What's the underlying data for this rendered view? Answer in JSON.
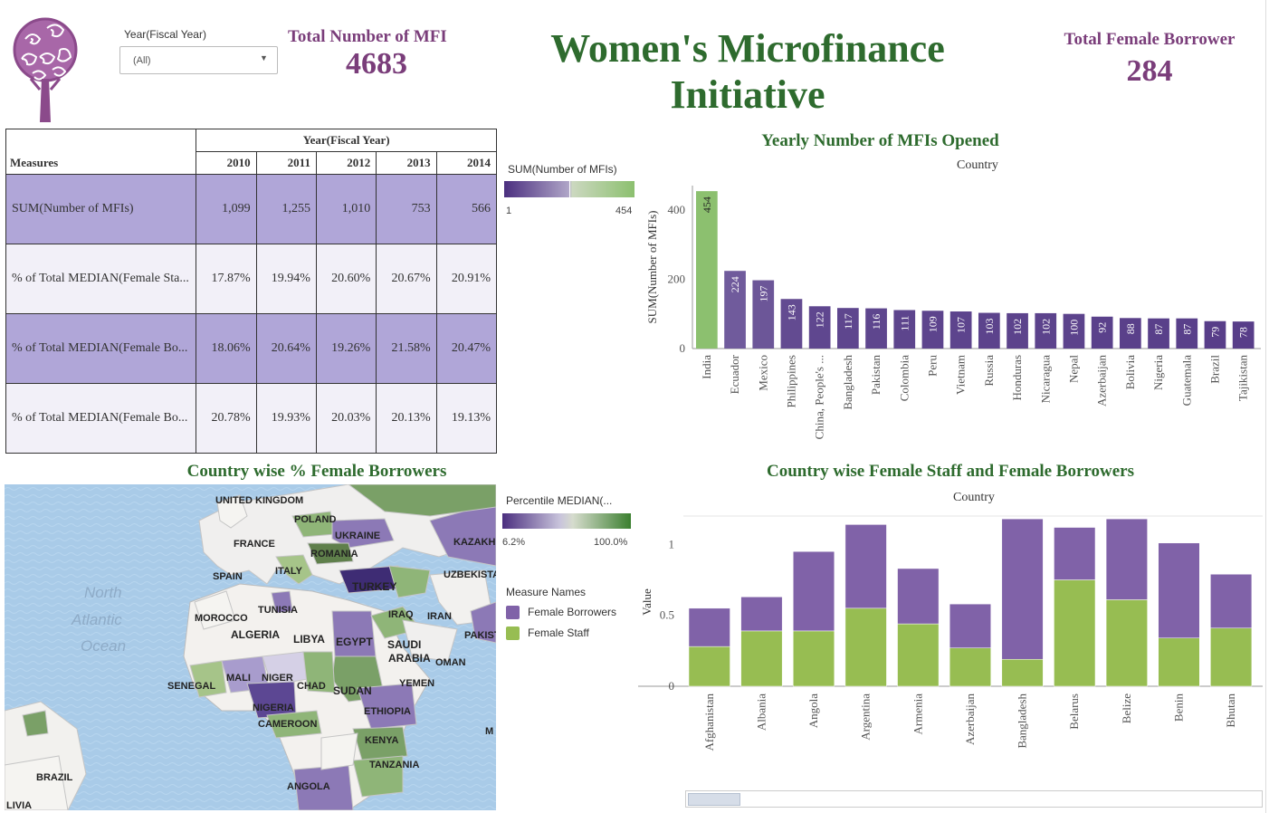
{
  "header": {
    "title": "Women's Microfinance Initiative",
    "filter_label": "Year(Fiscal Year)",
    "filter_value": "(All)",
    "kpi_mfi_label": "Total Number of MFI",
    "kpi_mfi_value": "4683",
    "kpi_fb_label": "Total Female Borrower",
    "kpi_fb_value": "284"
  },
  "crosstab": {
    "column_group": "Year(Fiscal Year)",
    "row_header": "Measures",
    "years": [
      "2010",
      "2011",
      "2012",
      "2013",
      "2014"
    ],
    "rows": [
      {
        "label": "SUM(Number of MFIs)",
        "values": [
          "1,099",
          "1,255",
          "1,010",
          "753",
          "566"
        ]
      },
      {
        "label": "% of Total MEDIAN(Female Sta...",
        "values": [
          "17.87%",
          "19.94%",
          "20.60%",
          "20.67%",
          "20.91%"
        ]
      },
      {
        "label": "% of Total MEDIAN(Female Bo...",
        "values": [
          "18.06%",
          "20.64%",
          "19.26%",
          "21.58%",
          "20.47%"
        ]
      },
      {
        "label": "% of Total MEDIAN(Female Bo...",
        "values": [
          "20.78%",
          "19.93%",
          "20.03%",
          "20.13%",
          "19.13%"
        ]
      }
    ]
  },
  "legend_mfi": {
    "title": "SUM(Number of MFIs)",
    "min": "1",
    "max": "454",
    "color_low": "#4b2f7f",
    "color_high": "#8cc06f"
  },
  "legend_map": {
    "title": "Percentile MEDIAN(...",
    "min": "6.2%",
    "max": "100.0%",
    "color_low": "#4b2f7f",
    "color_high": "#3b7f2f"
  },
  "legend_measures": {
    "title": "Measure Names",
    "items": [
      {
        "label": "Female Borrowers",
        "color": "#8062a8"
      },
      {
        "label": "Female Staff",
        "color": "#97bd52"
      }
    ]
  },
  "map": {
    "title": "Country wise % Female Borrowers",
    "ocean_label_1": "North",
    "ocean_label_2": "Atlantic",
    "ocean_label_3": "Ocean",
    "countries": [
      "UNITED KINGDOM",
      "POLAND",
      "UKRAINE",
      "KAZAKH",
      "FRANCE",
      "ROMANIA",
      "SPAIN",
      "ITALY",
      "UZBEKISTA",
      "TURKEY",
      "TUNISIA",
      "MOROCCO",
      "ALGERIA",
      "LIBYA",
      "EGYPT",
      "IRAQ",
      "IRAN",
      "SAUDI",
      "ARABIA",
      "OMAN",
      "PAKIST",
      "SENEGAL",
      "MALI",
      "NIGER",
      "CHAD",
      "SUDAN",
      "YEMEN",
      "NIGERIA",
      "ETHIOPIA",
      "CAMEROON",
      "KENYA",
      "TANZANIA",
      "BRAZIL",
      "ANGOLA",
      "LIVIA",
      "M"
    ]
  },
  "chart_data": [
    {
      "type": "bar",
      "title": "Yearly Number of MFIs Opened",
      "xlabel": "Country",
      "ylabel": "SUM(Number of MFIs)",
      "ylim": [
        0,
        470
      ],
      "yticks": [
        0,
        200,
        400
      ],
      "categories": [
        "India",
        "Ecuador",
        "Mexico",
        "Philippines",
        "China, People's ...",
        "Bangladesh",
        "Pakistan",
        "Colombia",
        "Peru",
        "Vietnam",
        "Russia",
        "Honduras",
        "Nicaragua",
        "Nepal",
        "Azerbaijan",
        "Bolivia",
        "Nigeria",
        "Guatemala",
        "Brazil",
        "Tajikistan"
      ],
      "values": [
        454,
        224,
        197,
        143,
        122,
        117,
        116,
        111,
        109,
        107,
        103,
        102,
        102,
        100,
        92,
        88,
        87,
        87,
        79,
        78
      ],
      "legend": "SUM(Number of MFIs)"
    },
    {
      "type": "bar",
      "stacked": true,
      "title": "Country wise Female Staff and Female Borrowers",
      "xlabel": "Country",
      "ylabel": "Value",
      "ylim": [
        0,
        1.2
      ],
      "yticks": [
        0,
        0.5,
        1
      ],
      "categories": [
        "Afghanistan",
        "Albania",
        "Angola",
        "Argentina",
        "Armenia",
        "Azerbaijan",
        "Bangladesh",
        "Belarus",
        "Belize",
        "Benin",
        "Bhutan"
      ],
      "series": [
        {
          "name": "Female Staff",
          "values": [
            0.28,
            0.39,
            0.39,
            0.55,
            0.44,
            0.27,
            0.19,
            0.75,
            0.61,
            0.34,
            0.41
          ],
          "color": "#97bd52"
        },
        {
          "name": "Female Borrowers",
          "values": [
            0.27,
            0.24,
            0.56,
            0.59,
            0.39,
            0.31,
            0.99,
            0.37,
            0.57,
            0.67,
            0.38
          ],
          "color": "#8062a8"
        }
      ]
    }
  ]
}
